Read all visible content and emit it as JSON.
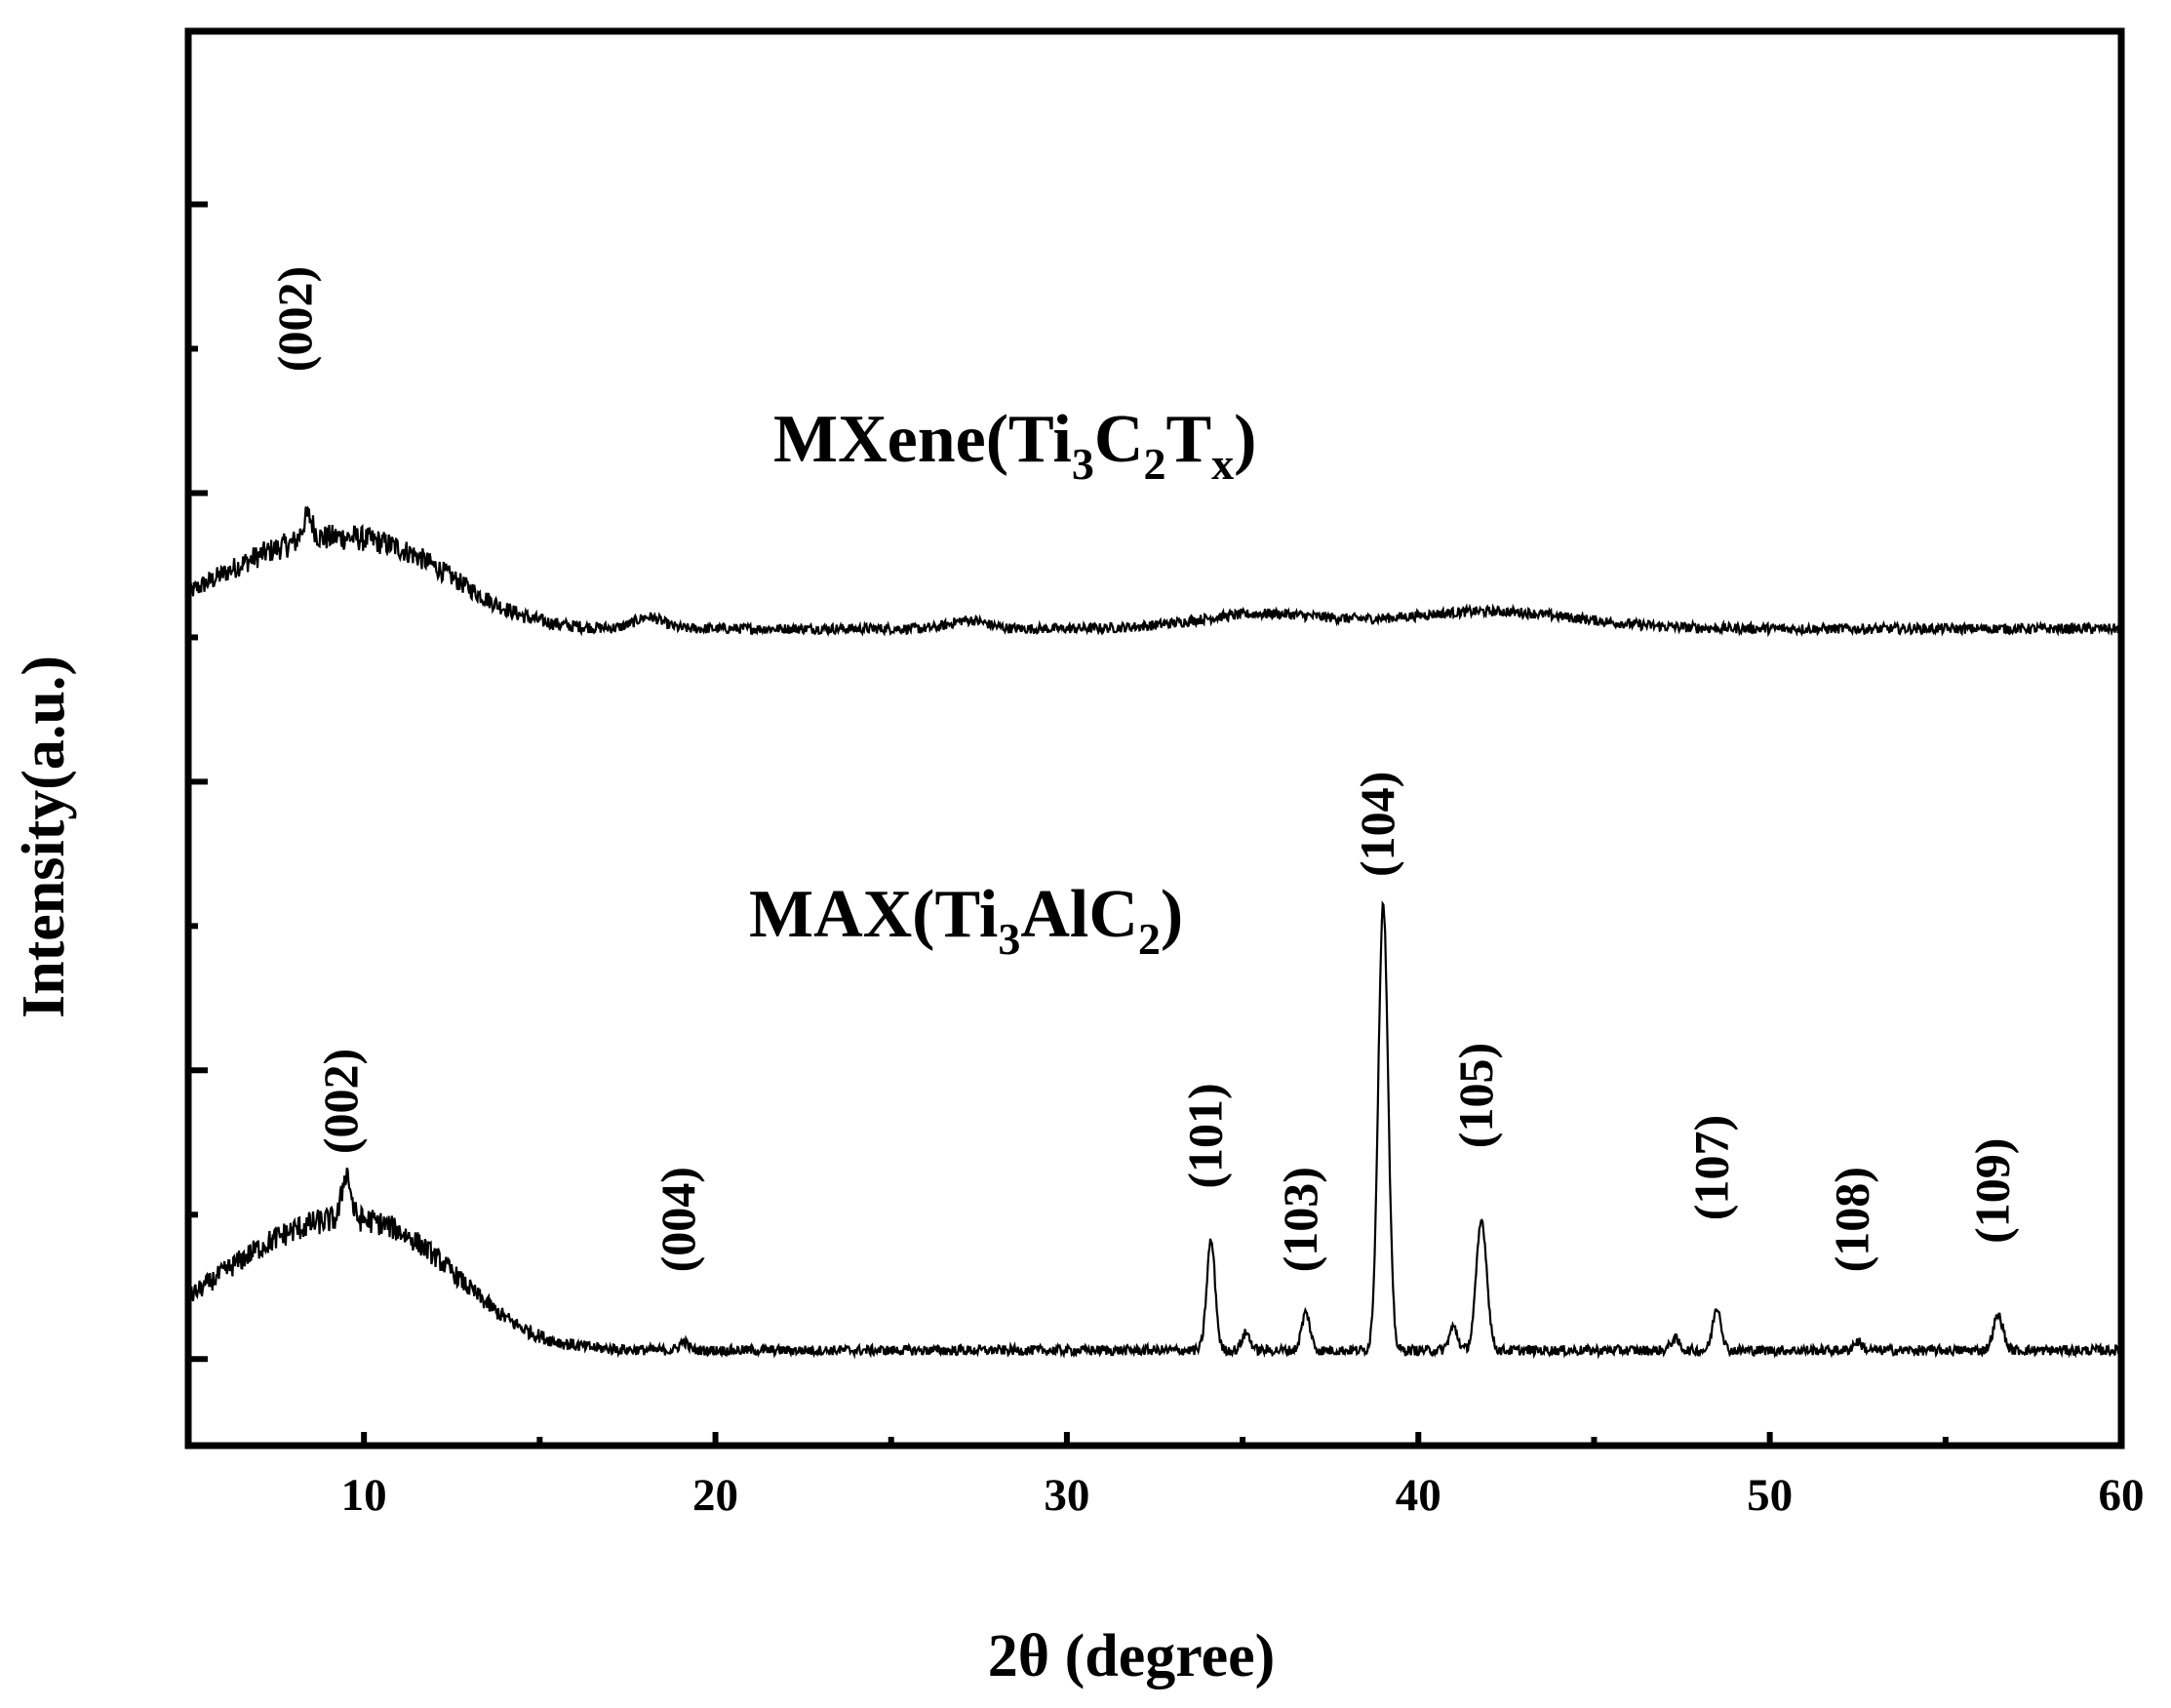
{
  "chart_data": {
    "type": "line",
    "xlabel": "2θ (degree)",
    "ylabel": "Intensity(a.u.)",
    "xlim": [
      5,
      60
    ],
    "ylim": [
      -0.3,
      4.6
    ],
    "x_ticks": [
      "10",
      "20",
      "30",
      "40",
      "50",
      "60"
    ],
    "x_minor_ticks": [
      15,
      25,
      35,
      45,
      55
    ],
    "y_tick_values": [
      0,
      0.5,
      1,
      1.5,
      2,
      2.5,
      3,
      3.5,
      4
    ],
    "y_tick_labels_shown": false,
    "grid": false,
    "legend": "none",
    "line_color": "#000000",
    "series": [
      {
        "label": {
          "main": "MXene(Ti",
          "sub1": "3",
          "mid1": "C",
          "sub2": "2",
          "mid2": "T",
          "sub3": "x",
          "end": ")"
        },
        "baseline": 2.53,
        "broad": [
          {
            "center": 8.3,
            "height": 0.28,
            "width": 2.6
          },
          {
            "center": 11.5,
            "height": 0.12,
            "width": 1.8
          },
          {
            "center": 18.1,
            "height": 0.04,
            "width": 0.4
          },
          {
            "center": 27.2,
            "height": 0.03,
            "width": 0.5
          },
          {
            "center": 35.5,
            "height": 0.05,
            "width": 1.8
          },
          {
            "center": 42,
            "height": 0.06,
            "width": 2.5
          }
        ],
        "peaks": [
          {
            "center": 8.4,
            "height": 0.08,
            "width": 0.15
          }
        ],
        "noise": 0.035,
        "annotations": [
          {
            "hkl": "(002)",
            "x": 8.5,
            "y": 3.42
          }
        ]
      },
      {
        "label": {
          "main": "MAX(Ti",
          "sub1": "3",
          "mid1": "AlC",
          "sub2": "2",
          "end": ")"
        },
        "baseline": 0.03,
        "broad": [
          {
            "center": 8.5,
            "height": 0.4,
            "width": 2.8
          },
          {
            "center": 11.5,
            "height": 0.15,
            "width": 1.8
          }
        ],
        "peaks": [
          {
            "center": 9.5,
            "height": 0.16,
            "width": 0.12
          },
          {
            "center": 19.1,
            "height": 0.03,
            "width": 0.12
          },
          {
            "center": 34.1,
            "height": 0.38,
            "width": 0.12
          },
          {
            "center": 35.1,
            "height": 0.06,
            "width": 0.12
          },
          {
            "center": 36.8,
            "height": 0.13,
            "width": 0.12
          },
          {
            "center": 39.0,
            "height": 1.55,
            "width": 0.14
          },
          {
            "center": 41.0,
            "height": 0.08,
            "width": 0.12
          },
          {
            "center": 41.8,
            "height": 0.45,
            "width": 0.15
          },
          {
            "center": 47.3,
            "height": 0.04,
            "width": 0.12
          },
          {
            "center": 48.5,
            "height": 0.15,
            "width": 0.12
          },
          {
            "center": 52.5,
            "height": 0.03,
            "width": 0.12
          },
          {
            "center": 56.5,
            "height": 0.12,
            "width": 0.14
          }
        ],
        "noise": 0.035,
        "annotations": [
          {
            "hkl": "(002)",
            "x": 9.8,
            "y": 0.71
          },
          {
            "hkl": "(004)",
            "x": 19.4,
            "y": 0.3
          },
          {
            "hkl": "(101)",
            "x": 34.4,
            "y": 0.59
          },
          {
            "hkl": "(103)",
            "x": 37.1,
            "y": 0.3
          },
          {
            "hkl": "(104)",
            "x": 39.3,
            "y": 1.67
          },
          {
            "hkl": "(105)",
            "x": 42.1,
            "y": 0.73
          },
          {
            "hkl": "(107)",
            "x": 48.8,
            "y": 0.48
          },
          {
            "hkl": "(108)",
            "x": 52.8,
            "y": 0.3
          },
          {
            "hkl": "(109)",
            "x": 56.8,
            "y": 0.4
          }
        ]
      }
    ]
  }
}
